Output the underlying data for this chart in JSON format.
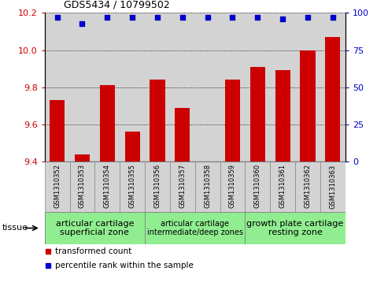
{
  "title": "GDS5434 / 10799502",
  "samples": [
    "GSM1310352",
    "GSM1310353",
    "GSM1310354",
    "GSM1310355",
    "GSM1310356",
    "GSM1310357",
    "GSM1310358",
    "GSM1310359",
    "GSM1310360",
    "GSM1310361",
    "GSM1310362",
    "GSM1310363"
  ],
  "bar_values": [
    9.73,
    9.44,
    9.81,
    9.56,
    9.84,
    9.69,
    9.4,
    9.84,
    9.91,
    9.89,
    10.0,
    10.07
  ],
  "dot_values": [
    97,
    93,
    97,
    97,
    97,
    97,
    97,
    97,
    97,
    96,
    97,
    97
  ],
  "ylim": [
    9.4,
    10.2
  ],
  "y2lim": [
    0,
    100
  ],
  "yticks": [
    9.4,
    9.6,
    9.8,
    10.0,
    10.2
  ],
  "y2ticks": [
    0,
    25,
    50,
    75,
    100
  ],
  "bar_color": "#cc0000",
  "dot_color": "#0000cc",
  "plot_bg_color": "#d3d3d3",
  "xtick_bg_color": "#d3d3d3",
  "tissue_groups": [
    {
      "label": "articular cartilage\nsuperficial zone",
      "indices": [
        0,
        1,
        2,
        3
      ],
      "color": "#90ee90",
      "fontsize": 8
    },
    {
      "label": "articular cartilage\nintermediate/deep zones",
      "indices": [
        4,
        5,
        6,
        7
      ],
      "color": "#90ee90",
      "fontsize": 7
    },
    {
      "label": "growth plate cartilage\nresting zone",
      "indices": [
        8,
        9,
        10,
        11
      ],
      "color": "#90ee90",
      "fontsize": 8
    }
  ],
  "legend_bar_label": "transformed count",
  "legend_dot_label": "percentile rank within the sample",
  "tissue_label": "tissue",
  "grid_color": "black",
  "grid_lw": 0.6
}
